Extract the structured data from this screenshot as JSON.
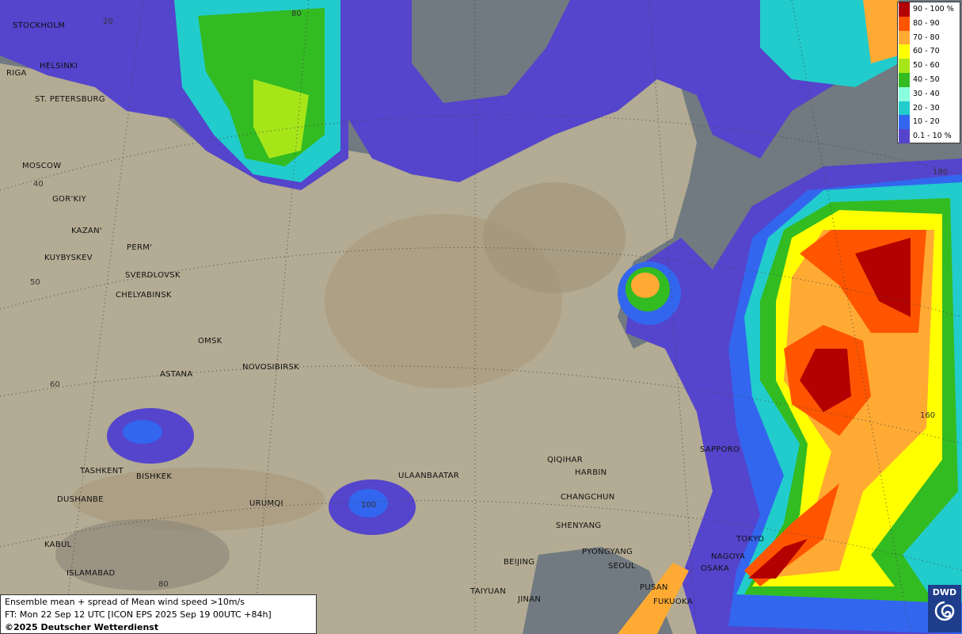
{
  "legend": [
    {
      "label": "90 - 100 %",
      "color": "#b30000"
    },
    {
      "label": "80 - 90",
      "color": "#ff5500"
    },
    {
      "label": "70 - 80",
      "color": "#ffaa33"
    },
    {
      "label": "60 - 70",
      "color": "#ffff00"
    },
    {
      "label": "50 - 60",
      "color": "#a6e619"
    },
    {
      "label": "40 - 50",
      "color": "#33bb22"
    },
    {
      "label": "30 - 40",
      "color": "#88ffdd"
    },
    {
      "label": "20 - 30",
      "color": "#22cccc"
    },
    {
      "label": "10 - 20",
      "color": "#3366ee"
    },
    {
      "label": "0.1 - 10 %",
      "color": "#5544cc"
    }
  ],
  "cities": [
    "STOCKHOLM",
    "HELSINKI",
    "RIGA",
    "ST. PETERSBURG",
    "MOSCOW",
    "GOR'KIY",
    "KAZAN'",
    "PERM'",
    "KUYBYSKEV",
    "SVERDLOVSK",
    "CHELYABINSK",
    "OMSK",
    "ASTANA",
    "NOVOSIBIRSK",
    "TASHKENT",
    "BISHKEK",
    "DUSHANBE",
    "URUMQI",
    "KABUL",
    "ISLAMABAD",
    "ULAANBAATAR",
    "QIQIHAR",
    "HARBIN",
    "CHANGCHUN",
    "SHENYANG",
    "PYONGYANG",
    "SEOUL",
    "BEIJING",
    "TAIYUAN",
    "JINAN",
    "PUSAN",
    "FUKUOKA",
    "OSAKA",
    "NAGOYA",
    "TOKYO",
    "SAPPORO"
  ],
  "grid_labels": [
    "20",
    "80",
    "40",
    "50",
    "60",
    "100",
    "80",
    "160",
    "180"
  ],
  "caption": [
    "Ensemble mean + spread of Mean wind speed >10m/s",
    "FT: Mon 22 Sep 12 UTC [ICON EPS 2025 Sep 19 00UTC +84h]",
    "©2025 Deutscher Wetterdienst"
  ],
  "logo": "DWD"
}
